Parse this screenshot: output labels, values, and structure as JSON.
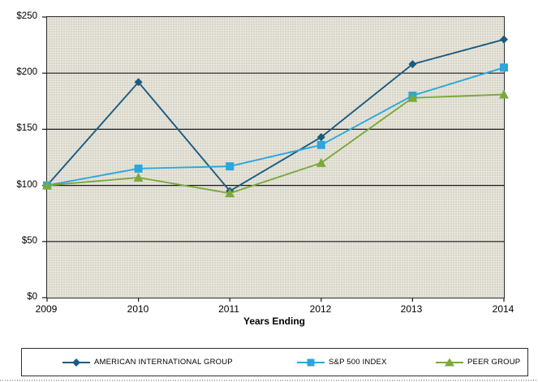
{
  "chart_data": {
    "type": "line",
    "title": "",
    "xlabel": "Years Ending",
    "ylabel": "",
    "x_tick_labels": [
      "2009",
      "2010",
      "2011",
      "2012",
      "2013",
      "2014"
    ],
    "y_tick_labels": [
      "$250",
      "$200",
      "$150",
      "$100",
      "$50",
      "$0"
    ],
    "ylim": [
      0,
      250
    ],
    "y_tick_step": 50,
    "grid": "horizontal",
    "legend_position": "bottom",
    "plot_background": "#d8d6c9",
    "gridline_color": "#1a1a1a",
    "series": [
      {
        "name": "AMERICAN INTERNATIONAL GROUP",
        "marker": "diamond",
        "color": "#1c5b80",
        "values": [
          100,
          192,
          95,
          143,
          208,
          230
        ]
      },
      {
        "name": "S&P 500 INDEX",
        "marker": "square",
        "color": "#2aa7dc",
        "values": [
          100,
          115,
          117,
          136,
          180,
          205
        ]
      },
      {
        "name": "PEER GROUP",
        "marker": "triangle",
        "color": "#7aa93c",
        "values": [
          100,
          107,
          93,
          120,
          178,
          181
        ]
      }
    ]
  }
}
